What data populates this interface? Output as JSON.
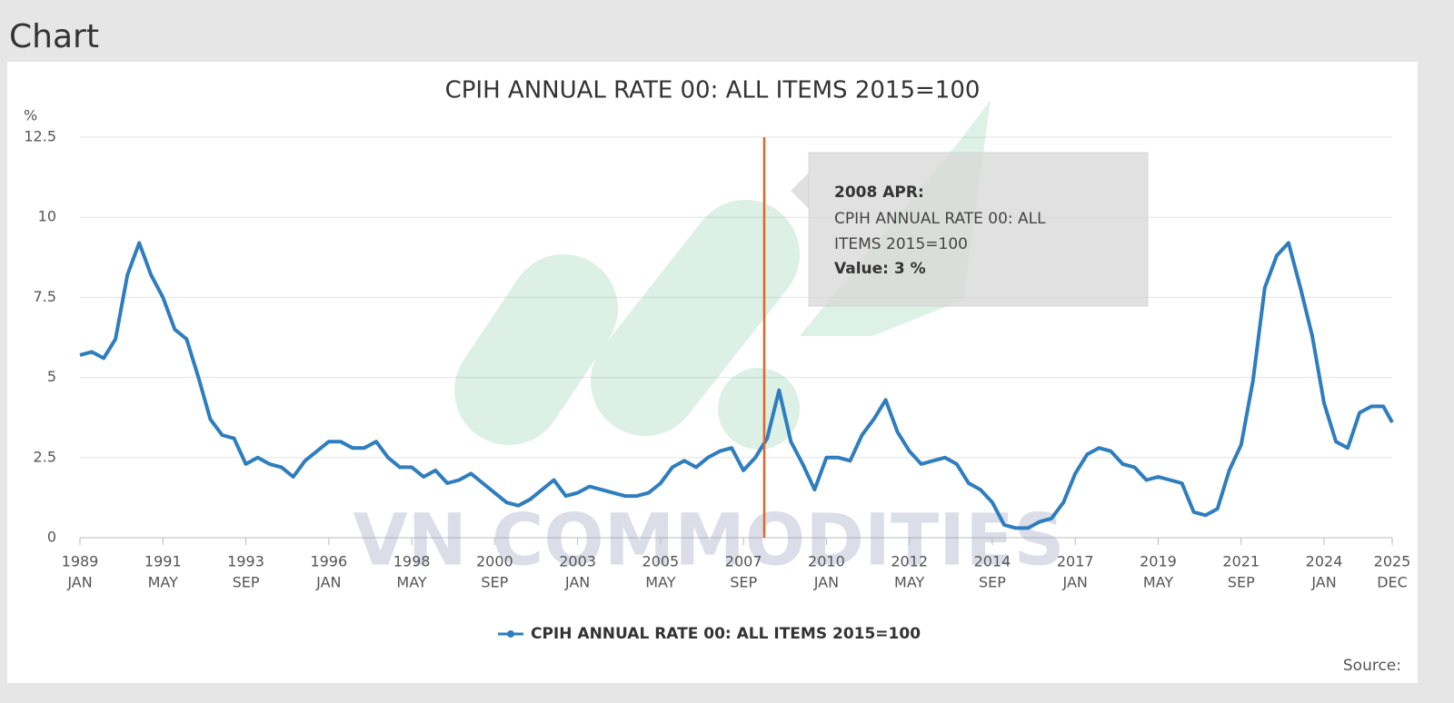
{
  "header": "Chart",
  "source": "Source:",
  "watermark": "VN COMMODITIES",
  "chart_data": {
    "type": "line",
    "title": "CPIH ANNUAL RATE 00: ALL ITEMS 2015=100",
    "y_unit": "%",
    "x": [
      "1989-01",
      "1989-05",
      "1989-09",
      "1990-01",
      "1990-05",
      "1990-09",
      "1991-01",
      "1991-05",
      "1991-09",
      "1992-01",
      "1992-05",
      "1992-09",
      "1993-01",
      "1993-05",
      "1993-09",
      "1994-01",
      "1994-05",
      "1994-09",
      "1995-01",
      "1995-05",
      "1995-09",
      "1996-01",
      "1996-05",
      "1996-09",
      "1997-01",
      "1997-05",
      "1997-09",
      "1998-01",
      "1998-05",
      "1998-09",
      "1999-01",
      "1999-05",
      "1999-09",
      "2000-01",
      "2000-05",
      "2000-09",
      "2001-01",
      "2001-05",
      "2001-09",
      "2002-01",
      "2002-05",
      "2002-09",
      "2003-01",
      "2003-05",
      "2003-09",
      "2004-01",
      "2004-05",
      "2004-09",
      "2005-01",
      "2005-05",
      "2005-09",
      "2006-01",
      "2006-05",
      "2006-09",
      "2007-01",
      "2007-05",
      "2007-09",
      "2008-01",
      "2008-05",
      "2008-09",
      "2009-01",
      "2009-05",
      "2009-09",
      "2010-01",
      "2010-05",
      "2010-09",
      "2011-01",
      "2011-05",
      "2011-09",
      "2012-01",
      "2012-05",
      "2012-09",
      "2013-01",
      "2013-05",
      "2013-09",
      "2014-01",
      "2014-05",
      "2014-09",
      "2015-01",
      "2015-05",
      "2015-09",
      "2016-01",
      "2016-05",
      "2016-09",
      "2017-01",
      "2017-05",
      "2017-09",
      "2018-01",
      "2018-05",
      "2018-09",
      "2019-01",
      "2019-05",
      "2019-09",
      "2020-01",
      "2020-05",
      "2020-09",
      "2021-01",
      "2021-05",
      "2021-09",
      "2022-01",
      "2022-05",
      "2022-09",
      "2023-01",
      "2023-05",
      "2023-09",
      "2024-01",
      "2024-05",
      "2024-09",
      "2025-01",
      "2025-05",
      "2025-09",
      "2025-12"
    ],
    "series": [
      {
        "name": "CPIH ANNUAL RATE 00: ALL ITEMS 2015=100",
        "color": "#2e7dbf",
        "values": [
          5.7,
          5.8,
          5.6,
          6.2,
          8.2,
          9.2,
          8.2,
          7.5,
          6.5,
          6.2,
          5.0,
          3.7,
          3.2,
          3.1,
          2.3,
          2.5,
          2.3,
          2.2,
          1.9,
          2.4,
          2.7,
          3.0,
          3.0,
          2.8,
          2.8,
          3.0,
          2.5,
          2.2,
          2.2,
          1.9,
          2.1,
          1.7,
          1.8,
          2.0,
          1.7,
          1.4,
          1.1,
          1.0,
          1.2,
          1.5,
          1.8,
          1.3,
          1.4,
          1.6,
          1.5,
          1.4,
          1.3,
          1.3,
          1.4,
          1.7,
          2.2,
          2.4,
          2.2,
          2.5,
          2.7,
          2.8,
          2.1,
          2.5,
          3.1,
          4.6,
          3.0,
          2.3,
          1.5,
          2.5,
          2.5,
          2.4,
          3.2,
          3.7,
          4.3,
          3.3,
          2.7,
          2.3,
          2.4,
          2.5,
          2.3,
          1.7,
          1.5,
          1.1,
          0.4,
          0.3,
          0.3,
          0.5,
          0.6,
          1.1,
          2.0,
          2.6,
          2.8,
          2.7,
          2.3,
          2.2,
          1.8,
          1.9,
          1.8,
          1.7,
          0.8,
          0.7,
          0.9,
          2.1,
          2.9,
          4.9,
          7.8,
          8.8,
          9.2,
          7.8,
          6.3,
          4.2,
          3.0,
          2.8,
          3.9,
          4.1,
          4.1,
          3.6
        ]
      }
    ],
    "xlim": [
      "1989-01",
      "2025-12"
    ],
    "xticks": [
      {
        "value": "1989-01",
        "label": [
          "1989",
          "JAN"
        ]
      },
      {
        "value": "1991-05",
        "label": [
          "1991",
          "MAY"
        ]
      },
      {
        "value": "1993-09",
        "label": [
          "1993",
          "SEP"
        ]
      },
      {
        "value": "1996-01",
        "label": [
          "1996",
          "JAN"
        ]
      },
      {
        "value": "1998-05",
        "label": [
          "1998",
          "MAY"
        ]
      },
      {
        "value": "2000-09",
        "label": [
          "2000",
          "SEP"
        ]
      },
      {
        "value": "2003-01",
        "label": [
          "2003",
          "JAN"
        ]
      },
      {
        "value": "2005-05",
        "label": [
          "2005",
          "MAY"
        ]
      },
      {
        "value": "2007-09",
        "label": [
          "2007",
          "SEP"
        ]
      },
      {
        "value": "2010-01",
        "label": [
          "2010",
          "JAN"
        ]
      },
      {
        "value": "2012-05",
        "label": [
          "2012",
          "MAY"
        ]
      },
      {
        "value": "2014-09",
        "label": [
          "2014",
          "SEP"
        ]
      },
      {
        "value": "2017-01",
        "label": [
          "2017",
          "JAN"
        ]
      },
      {
        "value": "2019-05",
        "label": [
          "2019",
          "MAY"
        ]
      },
      {
        "value": "2021-09",
        "label": [
          "2021",
          "SEP"
        ]
      },
      {
        "value": "2024-01",
        "label": [
          "2024",
          "JAN"
        ]
      },
      {
        "value": "2025-12",
        "label": [
          "2025",
          "DEC"
        ]
      }
    ],
    "ylim": [
      0,
      12.5
    ],
    "yticks": [
      0,
      2.5,
      5,
      7.5,
      10,
      12.5
    ],
    "grid": true,
    "legend": "bottom",
    "cursor": {
      "x": "2008-04",
      "color": "#e0652a"
    },
    "tooltip": {
      "title": "2008 APR:",
      "series": "CPIH ANNUAL RATE 00: ALL ITEMS 2015=100",
      "value": "Value: 3 %"
    }
  }
}
